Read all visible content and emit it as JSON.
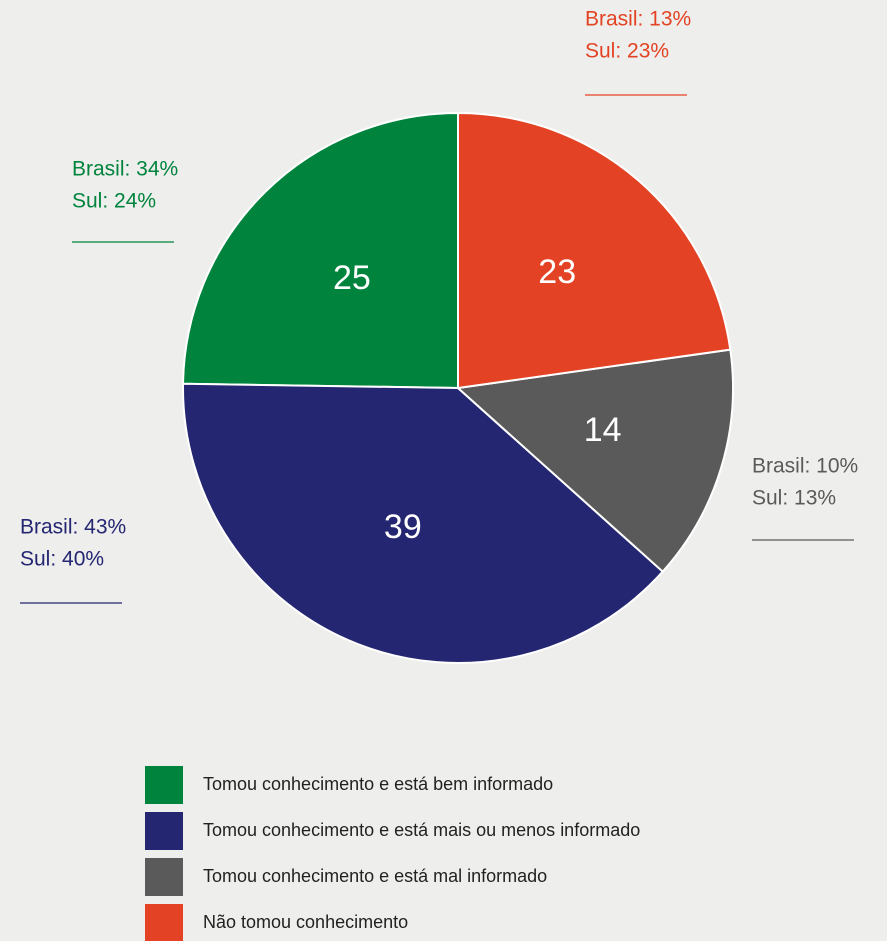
{
  "chart_data": {
    "type": "pie",
    "series": [
      {
        "name": "Tomou conhecimento e está bem informado",
        "color": "#00843d",
        "value": 25,
        "notes": [
          "Brasil: 34%",
          "Sul: 24%"
        ]
      },
      {
        "name": "Tomou conhecimento e está mais ou menos informado",
        "color": "#242672",
        "value": 39,
        "notes": [
          "Brasil: 43%",
          "Sul: 40%"
        ]
      },
      {
        "name": "Tomou conhecimento e está mal informado",
        "color": "#5a5a5a",
        "value": 14,
        "notes": [
          "Brasil: 10%",
          "Sul: 13%"
        ]
      },
      {
        "name": "Não tomou conhecimento",
        "color": "#e34324",
        "value": 23,
        "notes": [
          "Brasil: 13%",
          "Sul: 23%"
        ]
      }
    ],
    "start": "top",
    "direction": "counterclockwise"
  }
}
